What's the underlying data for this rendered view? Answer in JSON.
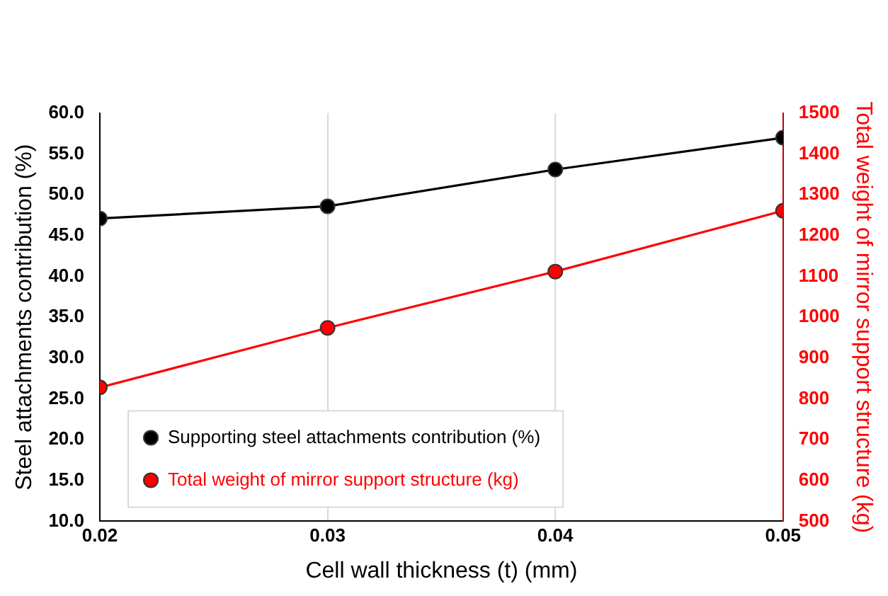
{
  "chart_data": {
    "type": "line",
    "xlabel": "Cell wall thickness (t) (mm)",
    "ylabel": "Steel attachments contribution (%)",
    "y2label": "Total weight of mirror support structure (kg)",
    "x": [
      0.02,
      0.03,
      0.04,
      0.05
    ],
    "series": [
      {
        "name": "Supporting steel attachments contribution (%)",
        "color": "#000000",
        "values": [
          47.1,
          48.6,
          53.1,
          57.0
        ]
      },
      {
        "name": "Total weight of mirror support structure (kg)",
        "color": "#ff0000",
        "axis": "y2",
        "values": [
          828,
          974,
          1112,
          1261
        ]
      }
    ],
    "xlim": [
      0.02,
      0.05
    ],
    "xticks": [
      0.02,
      0.03,
      0.04,
      0.05
    ],
    "ylim": [
      10,
      60
    ],
    "yticks": [
      {
        "value": 10,
        "label": "10.0"
      },
      {
        "value": 15,
        "label": "15.0"
      },
      {
        "value": 20,
        "label": "20.0"
      },
      {
        "value": 25,
        "label": "25.0"
      },
      {
        "value": 30,
        "label": "30.0"
      },
      {
        "value": 35,
        "label": "35.0"
      },
      {
        "value": 40,
        "label": "40.0"
      },
      {
        "value": 45,
        "label": "45.0"
      },
      {
        "value": 50,
        "label": "50.0"
      },
      {
        "value": 55,
        "label": "55.0"
      },
      {
        "value": 60,
        "label": "60.0"
      }
    ],
    "y2lim": [
      500,
      1500
    ],
    "y2ticks": [
      500,
      600,
      700,
      800,
      900,
      1000,
      1100,
      1200,
      1300,
      1400,
      1500
    ],
    "grid": "x",
    "legend": "bottom left",
    "marker": "circle",
    "line_style": "solid"
  }
}
